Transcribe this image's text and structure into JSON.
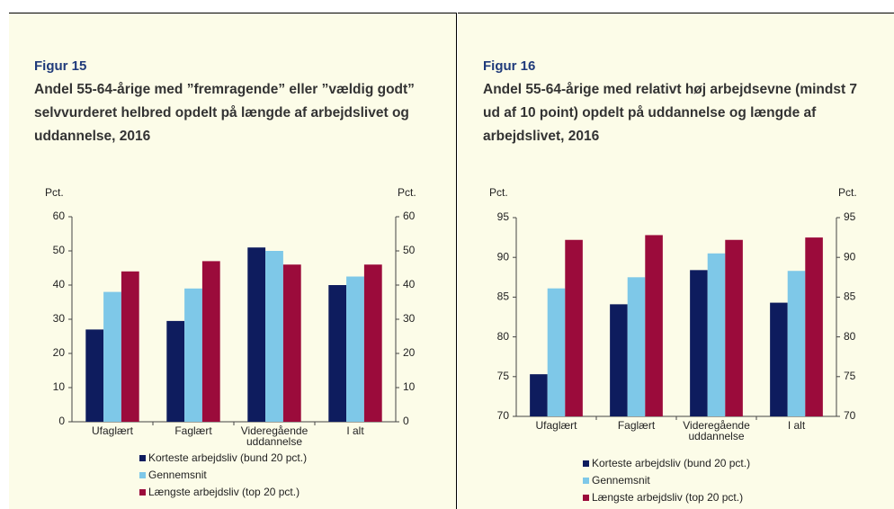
{
  "chart_data": [
    {
      "type": "bar",
      "title": "Figur 15",
      "subtitle": "Andel 55-64-årige med ”fremragende” eller ”vældig godt” selvvurderet helbred opdelt på længde af arbejdslivet og uddannelse, 2016",
      "ylabel": "Pct.",
      "y2label": "Pct.",
      "categories": [
        "Ufaglært",
        "Faglært",
        "Videregående uddannelse",
        "I alt"
      ],
      "series": [
        {
          "name": "Korteste arbejdsliv (bund 20 pct.)",
          "color": "#0e1c5e",
          "values": [
            27,
            29.5,
            51,
            40
          ]
        },
        {
          "name": "Gennemsnit",
          "color": "#7ec8e8",
          "values": [
            38,
            39,
            50,
            42.5
          ]
        },
        {
          "name": "Længste arbejdsliv (top 20 pct.)",
          "color": "#9b0b3b",
          "values": [
            44,
            47,
            46,
            46
          ]
        }
      ],
      "ylim": [
        0,
        60
      ],
      "yticks": [
        0,
        10,
        20,
        30,
        40,
        50,
        60
      ],
      "y2lim": [
        0,
        60
      ],
      "y2ticks": [
        0,
        10,
        20,
        30,
        40,
        50,
        60
      ]
    },
    {
      "type": "bar",
      "title": "Figur 16",
      "subtitle": "Andel 55-64-årige med relativt høj arbejdsevne (mindst 7 ud af 10 point) opdelt på uddannelse og længde af arbejdslivet, 2016",
      "ylabel": "Pct.",
      "y2label": "Pct.",
      "categories": [
        "Ufaglært",
        "Faglært",
        "Videregående uddannelse",
        "I alt"
      ],
      "series": [
        {
          "name": "Korteste arbejdsliv (bund 20 pct.)",
          "color": "#0e1c5e",
          "values": [
            75.3,
            84.1,
            88.4,
            84.3
          ]
        },
        {
          "name": "Gennemsnit",
          "color": "#7ec8e8",
          "values": [
            86.1,
            87.5,
            90.5,
            88.3
          ]
        },
        {
          "name": "Længste arbejdsliv (top 20 pct.)",
          "color": "#9b0b3b",
          "values": [
            92.2,
            92.8,
            92.2,
            92.5
          ]
        }
      ],
      "ylim": [
        70,
        95
      ],
      "yticks": [
        70,
        75,
        80,
        85,
        90,
        95
      ],
      "y2lim": [
        70,
        95
      ],
      "y2ticks": [
        70,
        75,
        80,
        85,
        90,
        95
      ]
    }
  ]
}
